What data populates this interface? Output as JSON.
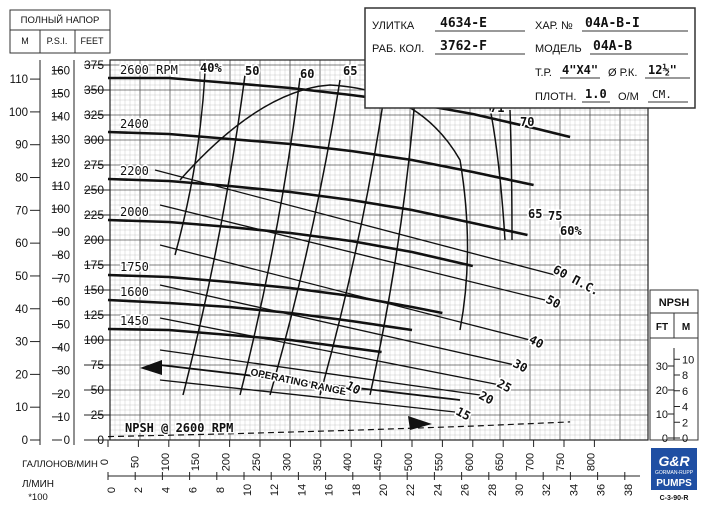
{
  "header": {
    "head_title": "ПОЛНЫЙ НАПОР",
    "col_m": "M",
    "col_psi": "P.S.I.",
    "col_feet": "FEET"
  },
  "info": {
    "volute_label": "УЛИТКА",
    "volute_value": "4634-E",
    "char_label": "ХАР. №",
    "char_value": "04A-B-I",
    "impeller_label": "РАБ. КОЛ.",
    "impeller_value": "3762-F",
    "model_label": "МОДЕЛЬ",
    "model_value": "04A-B",
    "tp_label": "Т.Р.",
    "tp_value": "4\"X4\"",
    "dia_label": "Ø Р.К.",
    "dia_value": "12½\"",
    "density_label": "ПЛОТН.",
    "density_value": "1.0",
    "om_label": "О/М",
    "om_value": "СМ."
  },
  "bottom": {
    "gpm_label": "ГАЛЛОНОВ/МИН",
    "lpm_label": "Л/МИН",
    "lpm_mult": "*100"
  },
  "logo": {
    "line1": "G&R",
    "line2": "GORMAN-RUPP",
    "line3": "PUMPS",
    "code": "C-3-90-R"
  },
  "chart_data": {
    "type": "line",
    "xlabel": "ГАЛЛОНОВ/МИН",
    "x_ticks": [
      0,
      50,
      100,
      150,
      200,
      250,
      300,
      350,
      400,
      450,
      500,
      550,
      600,
      650,
      700,
      750,
      800
    ],
    "xlim": [
      0,
      900
    ],
    "x_lpm_ticks": [
      "0",
      "2",
      "4",
      "6",
      "8",
      "10",
      "12",
      "14",
      "16",
      "18",
      "20",
      "22",
      "24",
      "26",
      "28",
      "30",
      "32",
      "34",
      "36",
      "38"
    ],
    "ylabel": "FEET",
    "ylim": [
      0,
      375
    ],
    "y_feet_ticks": [
      0,
      25,
      50,
      75,
      100,
      125,
      150,
      175,
      200,
      225,
      250,
      275,
      300,
      325,
      350,
      375
    ],
    "y_psi_ticks": [
      0,
      10,
      20,
      30,
      40,
      50,
      60,
      70,
      80,
      90,
      100,
      110,
      120,
      130,
      140,
      150,
      160
    ],
    "y_m_ticks": [
      0,
      10,
      20,
      30,
      40,
      50,
      60,
      70,
      80,
      90,
      100,
      110
    ],
    "npsh_title": "NPSH",
    "npsh_ft_label": "FT",
    "npsh_m_label": "M",
    "npsh_ft_ticks": [
      0,
      10,
      20,
      30
    ],
    "npsh_m_ticks": [
      0,
      2,
      4,
      6,
      8,
      10
    ],
    "series": [
      {
        "name": "2600 RPM",
        "x": [
          0,
          100,
          200,
          300,
          400,
          500,
          600,
          700,
          760
        ],
        "y": [
          362,
          362,
          357,
          352,
          345,
          337,
          326,
          312,
          303
        ]
      },
      {
        "name": "2400",
        "x": [
          0,
          100,
          200,
          300,
          400,
          500,
          600,
          700
        ],
        "y": [
          308,
          306,
          301,
          296,
          289,
          280,
          268,
          255
        ]
      },
      {
        "name": "2200",
        "x": [
          0,
          100,
          200,
          300,
          400,
          500,
          600,
          690
        ],
        "y": [
          261,
          259,
          254,
          248,
          240,
          230,
          217,
          205
        ]
      },
      {
        "name": "2000",
        "x": [
          0,
          100,
          200,
          300,
          400,
          500,
          600
        ],
        "y": [
          220,
          218,
          213,
          207,
          199,
          188,
          174
        ]
      },
      {
        "name": "1750",
        "x": [
          0,
          100,
          200,
          300,
          400,
          500,
          550
        ],
        "y": [
          165,
          163,
          158,
          152,
          144,
          133,
          127
        ]
      },
      {
        "name": "1600",
        "x": [
          0,
          100,
          200,
          300,
          400,
          500
        ],
        "y": [
          140,
          137,
          133,
          127,
          119,
          110
        ]
      },
      {
        "name": "1450",
        "x": [
          0,
          100,
          200,
          300,
          400,
          450
        ],
        "y": [
          111,
          110,
          105,
          100,
          92,
          88
        ]
      }
    ],
    "efficiency_labels": [
      "40%",
      "50",
      "60",
      "65",
      "70",
      "71",
      "71",
      "70",
      "65",
      "60%",
      "75"
    ],
    "npsh_curve": {
      "name": "NPSH @ 2600 RPM",
      "x": [
        0,
        200,
        400,
        600,
        760
      ],
      "y_feet": [
        2,
        6,
        11,
        17,
        23
      ]
    },
    "npsh_labels": [
      "60 П.С.",
      "50",
      "40",
      "30",
      "25",
      "20",
      "15",
      "10"
    ],
    "operating_range_label": "OPERATING RANGE"
  }
}
